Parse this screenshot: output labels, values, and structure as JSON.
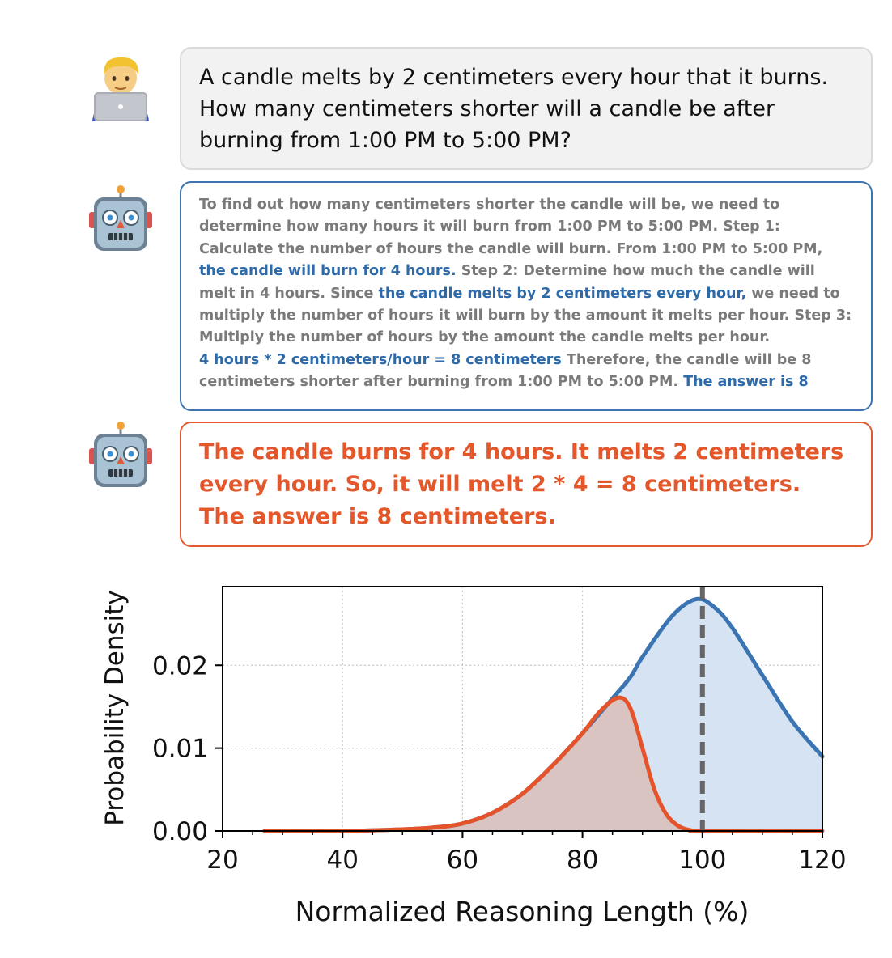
{
  "question": {
    "avatar_icon": "man-technologist-icon",
    "text": "A candle melts by 2 centimeters every hour that it burns. How many centimeters shorter will a candle be after burning from 1:00 PM to 5:00 PM?"
  },
  "long_answer": {
    "avatar_icon": "robot-icon",
    "border_color": "#3d74b0",
    "segments": [
      {
        "text": "To find out how many centimeters shorter the candle will be, we need to determine how many hours it will burn from 1:00 PM to 5:00 PM. Step 1: Calculate the number of hours the candle will burn. From 1:00 PM to 5:00 PM, ",
        "highlight": false
      },
      {
        "text": "the candle will burn for 4 hours.",
        "highlight": true
      },
      {
        "text": " Step 2: Determine how much the candle will melt in 4 hours. Since ",
        "highlight": false
      },
      {
        "text": "the candle melts by 2 centimeters every hour,",
        "highlight": true
      },
      {
        "text": " we need to multiply the number of hours it will burn by the amount it melts per hour. Step 3: Multiply the number of hours by the amount the candle melts per hour.",
        "highlight": false
      },
      {
        "text": "4 hours * 2 centimeters/hour = 8 centimeters",
        "highlight": true
      },
      {
        "text": " Therefore, the candle will be 8 centimeters shorter after burning from 1:00 PM to 5:00 PM. ",
        "highlight": false
      },
      {
        "text": "The answer is 8",
        "highlight": true
      }
    ]
  },
  "short_answer": {
    "avatar_icon": "robot-icon",
    "border_color": "#e25a30",
    "text": "The candle burns for 4 hours. It melts 2 centimeters every hour. So, it will melt 2 * 4 = 8 centimeters. The answer is 8 centimeters."
  },
  "chart_data": {
    "type": "area",
    "xlabel": "Normalized Reasoning Length (%)",
    "ylabel": "Probability Density",
    "xlim": [
      20,
      120
    ],
    "ylim": [
      0,
      0.0295
    ],
    "xticks": [
      "20",
      "40",
      "60",
      "80",
      "100",
      "120"
    ],
    "yticks": [
      "0.00",
      "0.01",
      "0.02"
    ],
    "grid": true,
    "reference_line_x": 100,
    "series": [
      {
        "color": "#3a74b2",
        "fill": "#d6e3f2",
        "x": [
          27,
          40,
          50,
          55,
          60,
          65,
          70,
          75,
          80,
          85,
          88,
          90,
          95,
          99,
          102,
          105,
          110,
          115,
          120
        ],
        "y": [
          0.0,
          0.0,
          0.0002,
          0.0004,
          0.0009,
          0.0022,
          0.0045,
          0.0079,
          0.0118,
          0.016,
          0.0186,
          0.021,
          0.026,
          0.028,
          0.027,
          0.0245,
          0.0188,
          0.0132,
          0.009
        ]
      },
      {
        "color": "#e5532a",
        "fill": "#d9beba",
        "x": [
          27,
          40,
          50,
          55,
          60,
          65,
          70,
          75,
          80,
          83,
          86,
          88,
          90,
          92,
          94,
          96,
          98,
          100,
          120
        ],
        "y": [
          0.0,
          0.0,
          0.0002,
          0.0004,
          0.0009,
          0.0022,
          0.0045,
          0.0079,
          0.0118,
          0.0145,
          0.0161,
          0.0148,
          0.01,
          0.005,
          0.002,
          0.0006,
          0.0001,
          0.0,
          0.0
        ]
      }
    ]
  }
}
